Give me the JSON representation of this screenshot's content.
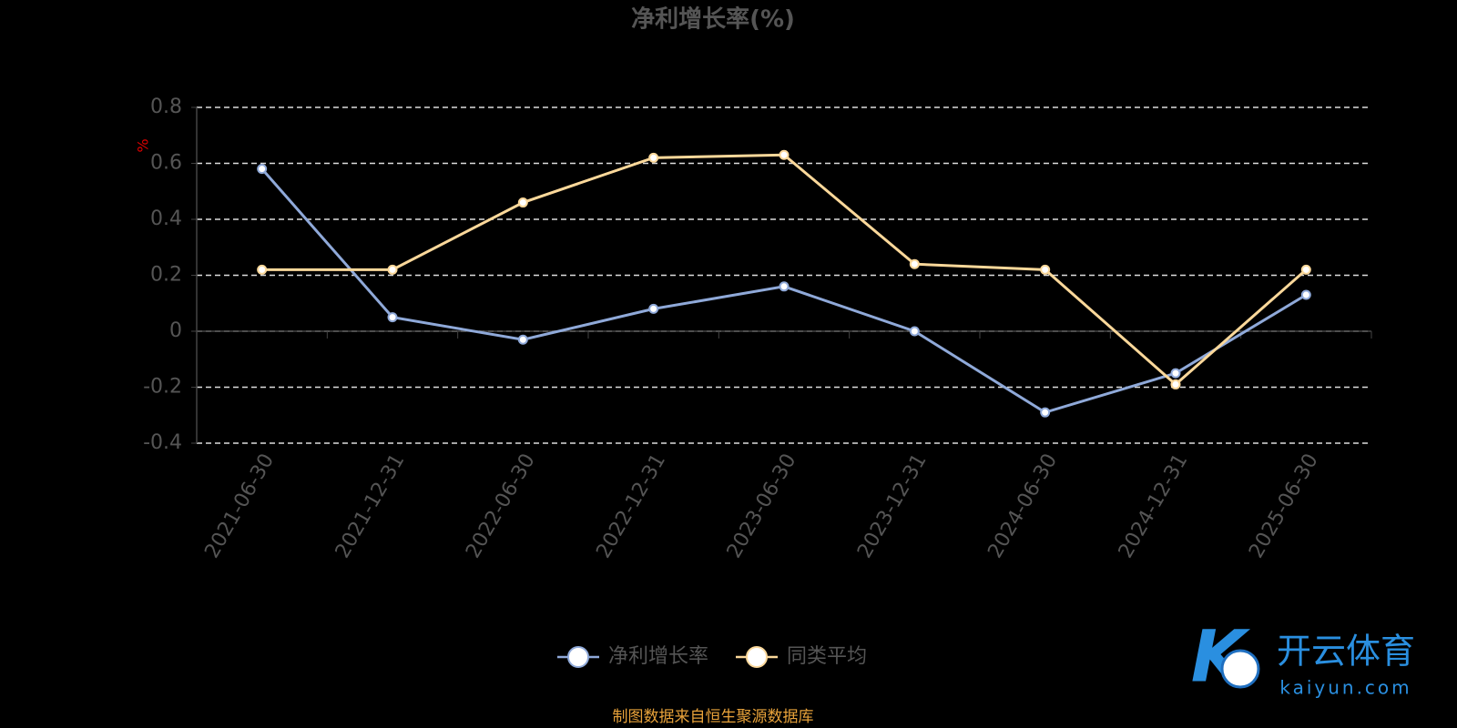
{
  "chart_data": {
    "type": "line",
    "title": "净利增长率(%)",
    "y_label": "%",
    "categories": [
      "2021-06-30",
      "2021-12-31",
      "2022-06-30",
      "2022-12-31",
      "2023-06-30",
      "2023-12-31",
      "2024-06-30",
      "2024-12-31",
      "2025-06-30"
    ],
    "series": [
      {
        "name": "净利增长率",
        "color": "#8fa9d9",
        "values": [
          0.58,
          0.05,
          -0.03,
          0.08,
          0.16,
          0.0,
          -0.29,
          -0.15,
          0.13
        ]
      },
      {
        "name": "同类平均",
        "color": "#fbd89a",
        "values": [
          0.22,
          0.22,
          0.46,
          0.62,
          0.63,
          0.24,
          0.22,
          -0.19,
          0.22
        ]
      }
    ],
    "ylim": [
      -0.4,
      0.8
    ],
    "yticks": [
      -0.4,
      -0.2,
      0,
      0.2,
      0.4,
      0.6,
      0.8
    ],
    "grid": true,
    "source": "制图数据来自恒生聚源数据库"
  },
  "watermark": {
    "title": "开云体育",
    "subtitle": "kaiyun.com"
  }
}
